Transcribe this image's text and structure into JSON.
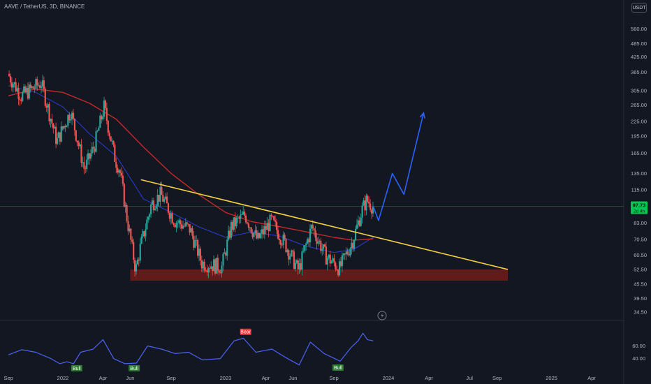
{
  "header": {
    "symbol_title": "AAVE / TetherUS, 3D, BINANCE",
    "currency_button": "USDT"
  },
  "colors": {
    "background": "#131722",
    "candle_up": "#26a69a",
    "candle_down": "#ef5350",
    "ma_red": "#c62828",
    "ma_blue": "#2a3ed4",
    "trendline": "#f5d142",
    "support_zone": "#6d1b1b",
    "projection": "#2962ff",
    "rsi_line": "#4c63f5",
    "price_badge": "#00c853"
  },
  "current_price": {
    "value": "97.73",
    "countdown": "2d 4h"
  },
  "rsi_labels": {
    "bull_1": "Bull",
    "bull_2": "Bull",
    "bear": "Bear",
    "bull_3": "Bull"
  },
  "chart_data": [
    {
      "type": "candlestick",
      "scale": "log",
      "x_axis_ticks": [
        "Sep",
        "2022",
        "Apr",
        "Jun",
        "Sep",
        "2023",
        "Apr",
        "Jun",
        "Sep",
        "2024",
        "Apr",
        "Jul",
        "Sep",
        "2025",
        "Apr"
      ],
      "y_axis_ticks": [
        560,
        485,
        425,
        365,
        305,
        265,
        225,
        195,
        165,
        135,
        115,
        97.73,
        83,
        70.5,
        60.5,
        52.5,
        45.5,
        39.5,
        34.5
      ],
      "ylim": [
        32,
        640
      ],
      "price_path": [
        [
          "2021-09-01",
          360
        ],
        [
          "2021-10-01",
          290
        ],
        [
          "2021-11-15",
          330
        ],
        [
          "2021-12-20",
          185
        ],
        [
          "2022-01-20",
          250
        ],
        [
          "2022-02-20",
          140
        ],
        [
          "2022-03-15",
          180
        ],
        [
          "2022-04-05",
          260
        ],
        [
          "2022-04-30",
          155
        ],
        [
          "2022-05-10",
          140
        ],
        [
          "2022-05-25",
          90
        ],
        [
          "2022-06-15",
          52
        ],
        [
          "2022-06-25",
          65
        ],
        [
          "2022-07-20",
          100
        ],
        [
          "2022-08-10",
          110
        ],
        [
          "2022-09-10",
          85
        ],
        [
          "2022-10-15",
          78
        ],
        [
          "2022-11-10",
          56
        ],
        [
          "2022-12-25",
          54
        ],
        [
          "2023-01-15",
          80
        ],
        [
          "2023-02-15",
          90
        ],
        [
          "2023-03-15",
          70
        ],
        [
          "2023-04-15",
          85
        ],
        [
          "2023-05-15",
          68
        ],
        [
          "2023-06-15",
          52
        ],
        [
          "2023-07-05",
          70
        ],
        [
          "2023-07-15",
          80
        ],
        [
          "2023-08-15",
          60
        ],
        [
          "2023-09-15",
          53
        ],
        [
          "2023-10-15",
          70
        ],
        [
          "2023-11-05",
          95
        ],
        [
          "2023-11-15",
          104
        ],
        [
          "2023-11-28",
          97.73
        ]
      ],
      "moving_average_slow": [
        [
          "2021-09-01",
          290
        ],
        [
          "2021-11-01",
          310
        ],
        [
          "2022-01-01",
          300
        ],
        [
          "2022-03-01",
          270
        ],
        [
          "2022-05-01",
          230
        ],
        [
          "2022-07-01",
          175
        ],
        [
          "2022-09-01",
          135
        ],
        [
          "2022-11-01",
          110
        ],
        [
          "2023-01-01",
          92
        ],
        [
          "2023-03-01",
          84
        ],
        [
          "2023-05-01",
          80
        ],
        [
          "2023-07-01",
          76
        ],
        [
          "2023-09-01",
          72
        ],
        [
          "2023-10-15",
          70
        ],
        [
          "2023-11-28",
          71
        ]
      ],
      "moving_average_fast": [
        [
          "2021-09-01",
          320
        ],
        [
          "2021-11-01",
          300
        ],
        [
          "2022-01-01",
          260
        ],
        [
          "2022-03-01",
          200
        ],
        [
          "2022-05-01",
          160
        ],
        [
          "2022-07-01",
          105
        ],
        [
          "2022-09-01",
          92
        ],
        [
          "2022-11-01",
          80
        ],
        [
          "2023-01-01",
          72
        ],
        [
          "2023-03-01",
          76
        ],
        [
          "2023-05-01",
          73
        ],
        [
          "2023-07-01",
          66
        ],
        [
          "2023-09-01",
          62
        ],
        [
          "2023-10-15",
          64
        ],
        [
          "2023-11-28",
          72
        ]
      ],
      "trendline": [
        [
          "2022-06-25",
          127
        ],
        [
          "2024-09-25",
          52.5
        ]
      ],
      "support_zone": {
        "from": "2022-06-01",
        "to": "2024-09-25",
        "low": 47,
        "high": 52.5
      },
      "projection_path": [
        [
          "2023-11-28",
          98
        ],
        [
          "2023-12-10",
          85
        ],
        [
          "2024-01-10",
          135
        ],
        [
          "2024-02-05",
          110
        ],
        [
          "2024-03-20",
          245
        ]
      ],
      "current_value": 97.73
    },
    {
      "type": "line",
      "indicator": "RSI",
      "y_axis_ticks": [
        60.0,
        40.0
      ],
      "ylim": [
        22,
        88
      ],
      "values": [
        [
          "2021-09-01",
          46
        ],
        [
          "2021-10-01",
          54
        ],
        [
          "2021-11-01",
          50
        ],
        [
          "2021-12-05",
          40
        ],
        [
          "2021-12-25",
          32
        ],
        [
          "2022-01-10",
          35
        ],
        [
          "2022-01-25",
          32
        ],
        [
          "2022-02-10",
          50
        ],
        [
          "2022-03-10",
          55
        ],
        [
          "2022-04-01",
          70
        ],
        [
          "2022-04-25",
          40
        ],
        [
          "2022-05-20",
          32
        ],
        [
          "2022-06-15",
          33
        ],
        [
          "2022-07-10",
          60
        ],
        [
          "2022-08-10",
          55
        ],
        [
          "2022-09-10",
          48
        ],
        [
          "2022-10-10",
          50
        ],
        [
          "2022-11-10",
          38
        ],
        [
          "2022-12-20",
          40
        ],
        [
          "2023-01-20",
          68
        ],
        [
          "2023-02-10",
          72
        ],
        [
          "2023-03-10",
          50
        ],
        [
          "2023-04-15",
          55
        ],
        [
          "2023-05-15",
          42
        ],
        [
          "2023-06-15",
          30
        ],
        [
          "2023-07-10",
          66
        ],
        [
          "2023-08-10",
          48
        ],
        [
          "2023-09-15",
          36
        ],
        [
          "2023-10-10",
          58
        ],
        [
          "2023-10-25",
          68
        ],
        [
          "2023-11-05",
          80
        ],
        [
          "2023-11-15",
          70
        ],
        [
          "2023-11-28",
          68
        ]
      ],
      "signals": [
        {
          "label": "Bull",
          "date": "2022-02-01",
          "value": 32
        },
        {
          "label": "Bull",
          "date": "2022-06-10",
          "value": 32
        },
        {
          "label": "Bear",
          "date": "2023-02-15",
          "value": 74
        },
        {
          "label": "Bull",
          "date": "2023-09-10",
          "value": 33
        }
      ]
    }
  ]
}
